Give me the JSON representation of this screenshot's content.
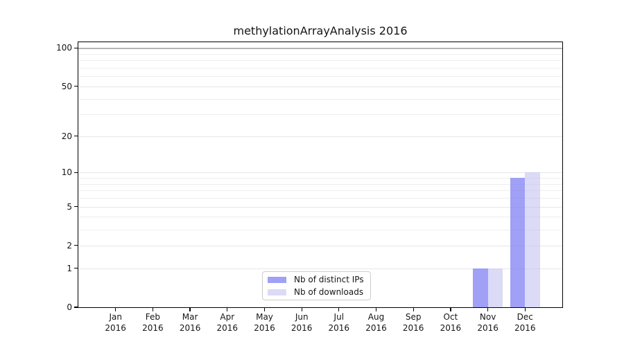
{
  "chart_data": {
    "type": "bar",
    "title": "methylationArrayAnalysis 2016",
    "categories": [
      "Jan",
      "Feb",
      "Mar",
      "Apr",
      "May",
      "Jun",
      "Jul",
      "Aug",
      "Sep",
      "Oct",
      "Nov",
      "Dec"
    ],
    "x_tick_second_line": "2016",
    "series": [
      {
        "name": "Nb of distinct IPs",
        "color": "rgba(130,130,245,0.76)",
        "values": [
          0,
          0,
          0,
          0,
          0,
          0,
          0,
          0,
          0,
          0,
          1,
          9
        ]
      },
      {
        "name": "Nb of downloads",
        "color": "rgba(190,190,240,0.55)",
        "values": [
          0,
          0,
          0,
          0,
          0,
          0,
          0,
          0,
          0,
          0,
          1,
          10
        ]
      }
    ],
    "y_axis": {
      "scale": "log1p",
      "major_ticks": [
        0,
        1,
        2,
        5,
        10,
        20,
        50,
        100
      ],
      "minor_gridline_values": [
        3,
        4,
        6,
        7,
        8,
        9,
        30,
        40,
        60,
        70,
        80,
        90
      ],
      "ylim": [
        0,
        111
      ],
      "emphasized_gridline_value": 100
    },
    "grid": "horizontal",
    "legend_position": "bottom-center"
  },
  "colors": {
    "grid_major": "#e6e6e6",
    "grid_minor": "#eeeeee",
    "grid_emphasized": "#b3b3b3",
    "axis_line": "#000000",
    "text": "#151515",
    "legend_border": "#cccccc",
    "background": "#ffffff"
  }
}
